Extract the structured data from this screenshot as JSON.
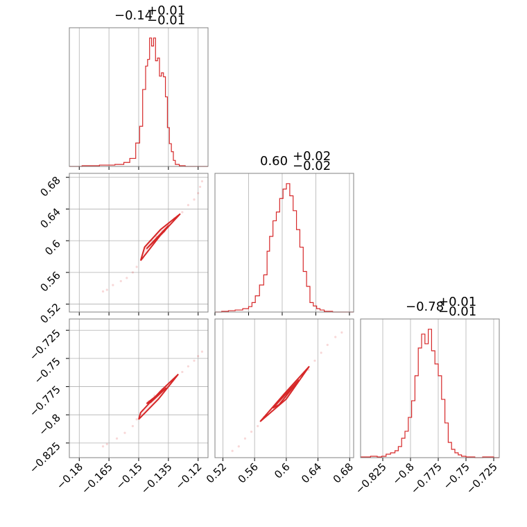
{
  "colors": {
    "accent": "#d62728",
    "grid": "#b0b0b0",
    "frame": "#808080"
  },
  "chart_data": [
    {
      "type": "histogram",
      "title": {
        "main": "−0.14",
        "plus": "+0.01",
        "minus": "−0.01"
      },
      "xlim": [
        -0.185,
        -0.115
      ],
      "xticks": [
        -0.18,
        -0.165,
        -0.15,
        -0.135,
        -0.12
      ],
      "bins": [
        [
          -0.185,
          0
        ],
        [
          -0.1786,
          1
        ],
        [
          -0.1698,
          2
        ],
        [
          -0.162,
          3
        ],
        [
          -0.1575,
          6
        ],
        [
          -0.1545,
          12
        ],
        [
          -0.1515,
          35
        ],
        [
          -0.1495,
          60
        ],
        [
          -0.148,
          115
        ],
        [
          -0.1465,
          150
        ],
        [
          -0.1455,
          160
        ],
        [
          -0.1445,
          192
        ],
        [
          -0.1435,
          180
        ],
        [
          -0.1425,
          192
        ],
        [
          -0.1415,
          158
        ],
        [
          -0.1405,
          162
        ],
        [
          -0.1395,
          135
        ],
        [
          -0.1385,
          140
        ],
        [
          -0.1375,
          134
        ],
        [
          -0.1365,
          104
        ],
        [
          -0.1355,
          58
        ],
        [
          -0.1345,
          34
        ],
        [
          -0.1335,
          22
        ],
        [
          -0.1325,
          9
        ],
        [
          -0.1315,
          3
        ],
        [
          -0.1295,
          1
        ],
        [
          -0.1265,
          0
        ]
      ]
    },
    {
      "type": "histogram",
      "title": {
        "main": "0.60",
        "plus": "+0.02",
        "minus": "−0.02"
      },
      "xlim": [
        0.52,
        0.685
      ],
      "xticks": [
        0.52,
        0.56,
        0.6,
        0.64,
        0.68
      ],
      "bins": [
        [
          0.52,
          0
        ],
        [
          0.528,
          1
        ],
        [
          0.536,
          2
        ],
        [
          0.544,
          3
        ],
        [
          0.553,
          5
        ],
        [
          0.56,
          8
        ],
        [
          0.564,
          14
        ],
        [
          0.568,
          24
        ],
        [
          0.573,
          40
        ],
        [
          0.578,
          55
        ],
        [
          0.582,
          90
        ],
        [
          0.585,
          112
        ],
        [
          0.589,
          135
        ],
        [
          0.593,
          148
        ],
        [
          0.597,
          168
        ],
        [
          0.601,
          182
        ],
        [
          0.605,
          190
        ],
        [
          0.609,
          172
        ],
        [
          0.613,
          150
        ],
        [
          0.617,
          122
        ],
        [
          0.621,
          96
        ],
        [
          0.625,
          60
        ],
        [
          0.629,
          38
        ],
        [
          0.633,
          14
        ],
        [
          0.637,
          9
        ],
        [
          0.641,
          5
        ],
        [
          0.645,
          3
        ],
        [
          0.65,
          1
        ],
        [
          0.66,
          0
        ]
      ]
    },
    {
      "type": "histogram",
      "title": {
        "main": "−0.78",
        "plus": "+0.01",
        "minus": "−0.01"
      },
      "xlim": [
        -0.845,
        -0.72
      ],
      "xticks": [
        -0.825,
        -0.8,
        -0.775,
        -0.75,
        -0.725
      ],
      "bins": [
        [
          -0.845,
          1
        ],
        [
          -0.836,
          2
        ],
        [
          -0.83,
          1
        ],
        [
          -0.826,
          2
        ],
        [
          -0.822,
          5
        ],
        [
          -0.818,
          7
        ],
        [
          -0.814,
          10
        ],
        [
          -0.811,
          16
        ],
        [
          -0.808,
          28
        ],
        [
          -0.805,
          38
        ],
        [
          -0.802,
          58
        ],
        [
          -0.799,
          82
        ],
        [
          -0.796,
          118
        ],
        [
          -0.793,
          158
        ],
        [
          -0.79,
          178
        ],
        [
          -0.787,
          164
        ],
        [
          -0.784,
          185
        ],
        [
          -0.781,
          154
        ],
        [
          -0.778,
          135
        ],
        [
          -0.775,
          118
        ],
        [
          -0.772,
          84
        ],
        [
          -0.769,
          50
        ],
        [
          -0.766,
          22
        ],
        [
          -0.763,
          12
        ],
        [
          -0.76,
          7
        ],
        [
          -0.757,
          4
        ],
        [
          -0.754,
          2
        ],
        [
          -0.75,
          1
        ],
        [
          -0.742,
          0
        ],
        [
          -0.735,
          1
        ],
        [
          -0.725,
          0
        ]
      ]
    },
    {
      "type": "scatter",
      "xlim": [
        -0.185,
        -0.115
      ],
      "ylim": [
        0.51,
        0.685
      ],
      "xticks": [
        -0.18,
        -0.165,
        -0.15,
        -0.135,
        -0.12
      ],
      "yticks": [
        0.52,
        0.56,
        0.6,
        0.64,
        0.68
      ],
      "points": [
        [
          -0.168,
          0.536
        ],
        [
          -0.166,
          0.538
        ],
        [
          -0.163,
          0.544
        ],
        [
          -0.159,
          0.549
        ],
        [
          -0.156,
          0.553
        ],
        [
          -0.153,
          0.56
        ],
        [
          -0.151,
          0.567
        ],
        [
          -0.148,
          0.578
        ],
        [
          -0.146,
          0.59
        ],
        [
          -0.144,
          0.6
        ],
        [
          -0.141,
          0.605
        ],
        [
          -0.138,
          0.612
        ],
        [
          -0.135,
          0.62
        ],
        [
          -0.132,
          0.628
        ],
        [
          -0.128,
          0.636
        ],
        [
          -0.125,
          0.645
        ],
        [
          -0.122,
          0.652
        ],
        [
          -0.12,
          0.66
        ],
        [
          -0.119,
          0.668
        ],
        [
          -0.118,
          0.675
        ]
      ],
      "contours": [
        [
          [
            -0.149,
            0.575
          ],
          [
            -0.139,
            0.607
          ],
          [
            -0.129,
            0.634
          ],
          [
            -0.139,
            0.614
          ],
          [
            -0.147,
            0.592
          ],
          [
            -0.149,
            0.575
          ]
        ],
        [
          [
            -0.146,
            0.59
          ],
          [
            -0.135,
            0.619
          ],
          [
            -0.137,
            0.612
          ],
          [
            -0.146,
            0.59
          ]
        ]
      ]
    },
    {
      "type": "scatter",
      "xlim": [
        -0.185,
        -0.115
      ],
      "ylim": [
        -0.838,
        -0.715
      ],
      "xticks": [
        -0.18,
        -0.165,
        -0.15,
        -0.135,
        -0.12
      ],
      "yticks": [
        -0.725,
        -0.75,
        -0.775,
        -0.8,
        -0.825
      ],
      "points": [
        [
          -0.168,
          -0.828
        ],
        [
          -0.166,
          -0.826
        ],
        [
          -0.161,
          -0.821
        ],
        [
          -0.157,
          -0.816
        ],
        [
          -0.153,
          -0.81
        ],
        [
          -0.151,
          -0.804
        ],
        [
          -0.148,
          -0.796
        ],
        [
          -0.145,
          -0.788
        ],
        [
          -0.142,
          -0.783
        ],
        [
          -0.138,
          -0.777
        ],
        [
          -0.134,
          -0.771
        ],
        [
          -0.131,
          -0.766
        ],
        [
          -0.128,
          -0.762
        ],
        [
          -0.125,
          -0.757
        ],
        [
          -0.122,
          -0.752
        ],
        [
          -0.12,
          -0.748
        ],
        [
          -0.118,
          -0.744
        ]
      ],
      "contours": [
        [
          [
            -0.15,
            -0.804
          ],
          [
            -0.14,
            -0.786
          ],
          [
            -0.13,
            -0.764
          ],
          [
            -0.139,
            -0.779
          ],
          [
            -0.149,
            -0.798
          ],
          [
            -0.15,
            -0.804
          ]
        ],
        [
          [
            -0.146,
            -0.79
          ],
          [
            -0.136,
            -0.776
          ],
          [
            -0.144,
            -0.789
          ],
          [
            -0.146,
            -0.79
          ]
        ]
      ]
    },
    {
      "type": "scatter",
      "xlim": [
        0.51,
        0.685
      ],
      "ylim": [
        -0.838,
        -0.715
      ],
      "xticks": [
        0.52,
        0.56,
        0.6,
        0.64,
        0.68
      ],
      "yticks": [],
      "points": [
        [
          0.532,
          -0.832
        ],
        [
          0.54,
          -0.828
        ],
        [
          0.548,
          -0.821
        ],
        [
          0.556,
          -0.815
        ],
        [
          0.564,
          -0.81
        ],
        [
          0.572,
          -0.802
        ],
        [
          0.58,
          -0.796
        ],
        [
          0.588,
          -0.79
        ],
        [
          0.596,
          -0.784
        ],
        [
          0.604,
          -0.778
        ],
        [
          0.612,
          -0.772
        ],
        [
          0.62,
          -0.766
        ],
        [
          0.628,
          -0.76
        ],
        [
          0.636,
          -0.752
        ],
        [
          0.644,
          -0.745
        ],
        [
          0.652,
          -0.738
        ],
        [
          0.662,
          -0.731
        ],
        [
          0.67,
          -0.727
        ]
      ],
      "contours": [
        [
          [
            0.567,
            -0.806
          ],
          [
            0.598,
            -0.781
          ],
          [
            0.629,
            -0.757
          ],
          [
            0.6,
            -0.786
          ],
          [
            0.567,
            -0.806
          ]
        ],
        [
          [
            0.583,
            -0.794
          ],
          [
            0.616,
            -0.769
          ],
          [
            0.591,
            -0.791
          ],
          [
            0.583,
            -0.794
          ]
        ]
      ]
    }
  ]
}
